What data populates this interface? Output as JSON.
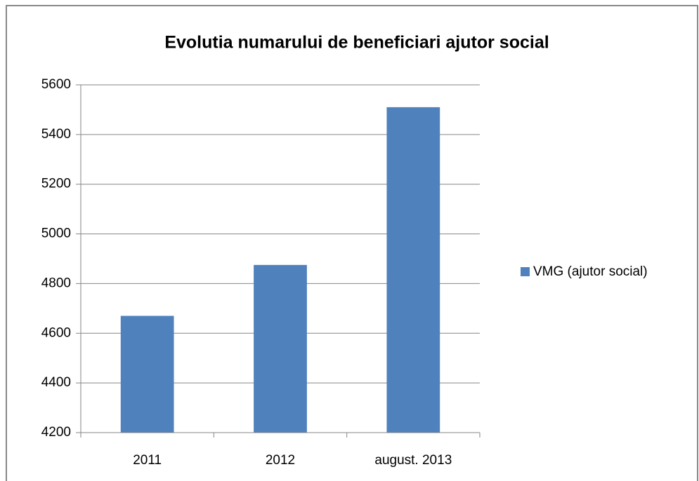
{
  "chart_data": {
    "type": "bar",
    "title": "Evolutia numarului de beneficiari ajutor social",
    "categories": [
      "2011",
      "2012",
      "august. 2013"
    ],
    "series": [
      {
        "name": "VMG (ajutor social)",
        "color": "#4f81bd",
        "values": [
          4670,
          4875,
          5510
        ]
      }
    ],
    "ylim": [
      4200,
      5600
    ],
    "yticks": [
      4200,
      4400,
      4600,
      4800,
      5000,
      5200,
      5400,
      5600
    ],
    "grid": true,
    "legend": "right"
  }
}
